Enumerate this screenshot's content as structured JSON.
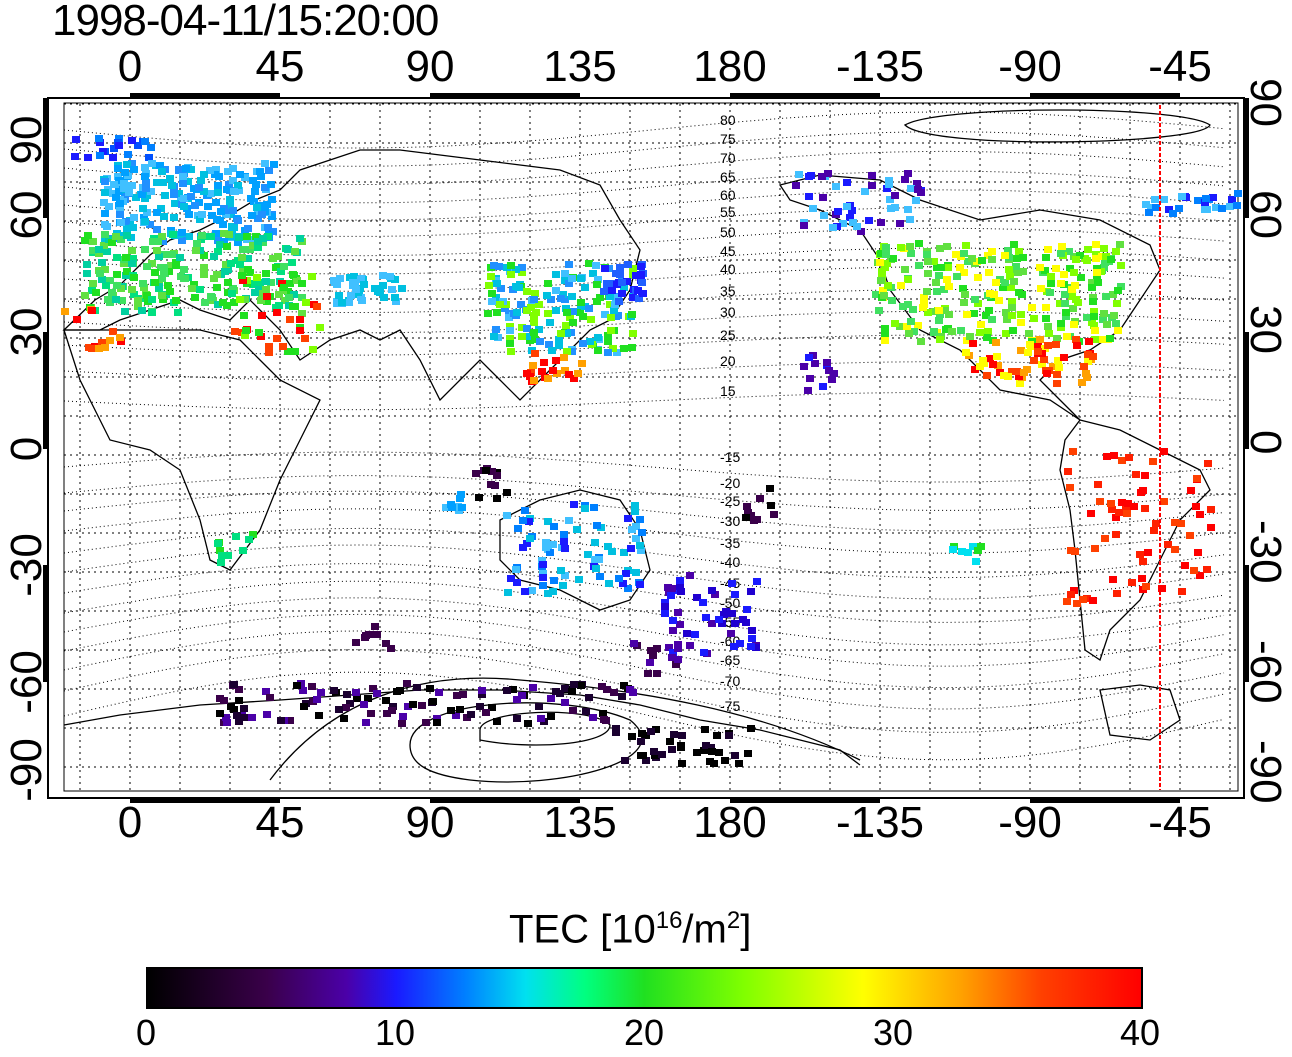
{
  "title": "1998-04-11/15:20:00",
  "map": {
    "lon_ticks_top": [
      "0",
      "45",
      "90",
      "135",
      "180",
      "-135",
      "-90",
      "-45"
    ],
    "lon_ticks_bottom": [
      "0",
      "45",
      "90",
      "135",
      "180",
      "-135",
      "-90",
      "-45"
    ],
    "lat_ticks_left": [
      "90",
      "60",
      "30",
      "0",
      "-30",
      "-60",
      "-90"
    ],
    "lat_ticks_right": [
      "90",
      "60",
      "30",
      "0",
      "-30",
      "-60",
      "-90"
    ],
    "magnetic_lat_labels": [
      "80",
      "75",
      "70",
      "65",
      "60",
      "55",
      "50",
      "45",
      "40",
      "35",
      "30",
      "25",
      "20",
      "15",
      "-15",
      "-20",
      "-25",
      "-30",
      "-35",
      "-40",
      "-45",
      "-50",
      "-55",
      "-60",
      "-65",
      "-70",
      "-75"
    ],
    "marker_line_color": "#ff0000",
    "gridline_style": "dotted"
  },
  "colorbar": {
    "label_main": "TEC  [10",
    "label_exp": "16",
    "label_unit": "/m",
    "label_unit_exp": "2",
    "label_close": "]",
    "ticks": [
      "0",
      "10",
      "20",
      "30",
      "40"
    ],
    "range": [
      0,
      40
    ],
    "colormap": [
      "#000000",
      "#4b00a8",
      "#1a1aff",
      "#00e0f0",
      "#20e020",
      "#ffff00",
      "#ff0000"
    ]
  }
}
